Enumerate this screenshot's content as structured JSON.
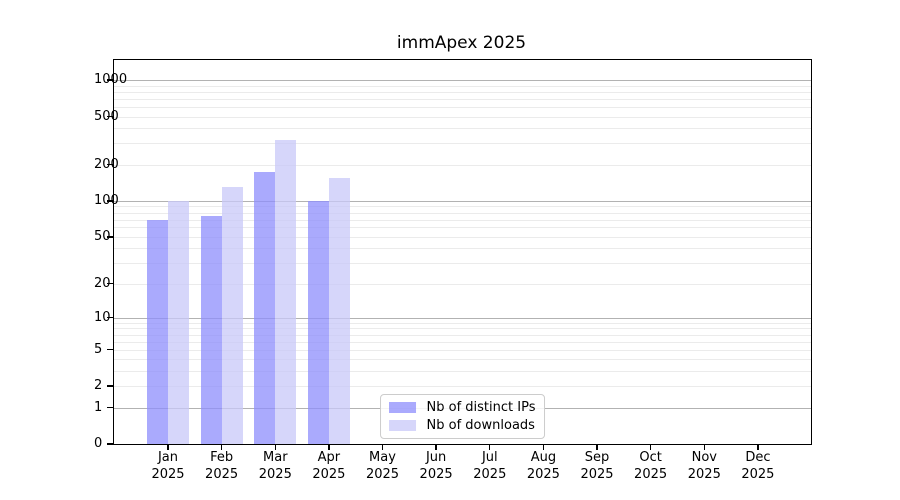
{
  "chart_data": {
    "type": "bar",
    "title": "immApex 2025",
    "categories": [
      "Jan",
      "Feb",
      "Mar",
      "Apr",
      "May",
      "Jun",
      "Jul",
      "Aug",
      "Sep",
      "Oct",
      "Nov",
      "Dec"
    ],
    "category_year": "2025",
    "series": [
      {
        "name": "Nb of distinct IPs",
        "color": "rgba(142,142,252,0.75)",
        "values": [
          70,
          75,
          175,
          100,
          null,
          null,
          null,
          null,
          null,
          null,
          null,
          null
        ]
      },
      {
        "name": "Nb of downloads",
        "color": "rgba(200,200,248,0.75)",
        "values": [
          100,
          130,
          320,
          155,
          null,
          null,
          null,
          null,
          null,
          null,
          null,
          null
        ]
      }
    ],
    "y_axis": {
      "scale": "log1p",
      "tick_values": [
        0,
        1,
        2,
        5,
        10,
        20,
        50,
        100,
        200,
        500,
        1000
      ],
      "tick_labels": [
        "0",
        "1",
        "2",
        "5",
        "10",
        "20",
        "50",
        "100",
        "200",
        "500",
        "1000"
      ],
      "major_gridlines": [
        1,
        10,
        100,
        1000
      ],
      "minor_gridlines": [
        2,
        3,
        4,
        5,
        6,
        7,
        8,
        9,
        20,
        30,
        40,
        50,
        60,
        70,
        80,
        90,
        200,
        300,
        400,
        500,
        600,
        700,
        800,
        900
      ],
      "ylim": [
        0,
        1464
      ]
    },
    "xlabel": "",
    "ylabel": "",
    "grid": true,
    "legend": {
      "position": "lower center",
      "entries": [
        "Nb of distinct IPs",
        "Nb of downloads"
      ]
    }
  }
}
